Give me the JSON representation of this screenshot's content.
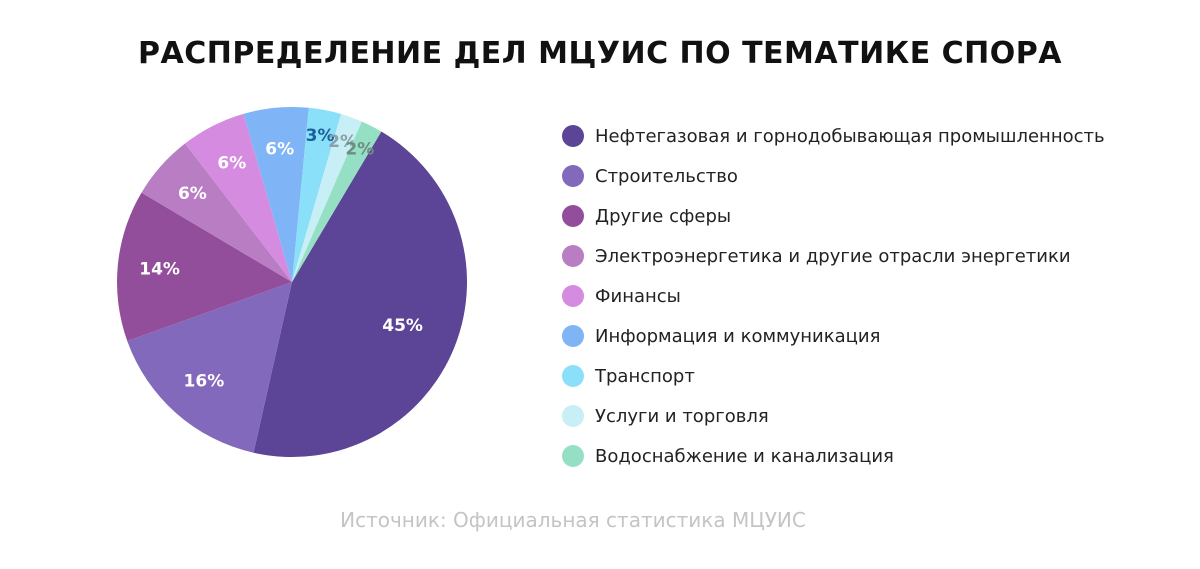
{
  "chart_data": {
    "type": "pie",
    "title": "РАСПРЕДЕЛЕНИЕ ДЕЛ МЦУИС ПО ТЕМАТИКЕ СПОРА",
    "source": "Источник: Официальная статистика МЦУИС",
    "legend_position": "right",
    "slices": [
      {
        "label": "Нефтегазовая и горнодобывающая промышленность",
        "value": 45,
        "value_label": "45%",
        "color": "#5c4496",
        "label_color": "#ffffff"
      },
      {
        "label": "Строительство",
        "value": 16,
        "value_label": "16%",
        "color": "#8369bb",
        "label_color": "#ffffff"
      },
      {
        "label": "Другие сферы",
        "value": 14,
        "value_label": "14%",
        "color": "#934e9b",
        "label_color": "#ffffff"
      },
      {
        "label": "Электроэнергетика и другие отрасли энергетики",
        "value": 6,
        "value_label": "6%",
        "color": "#b97dc4",
        "label_color": "#ffffff"
      },
      {
        "label": "Финансы",
        "value": 6,
        "value_label": "6%",
        "color": "#d58bdf",
        "label_color": "#ffffff"
      },
      {
        "label": "Информация и коммуникация",
        "value": 6,
        "value_label": "6%",
        "color": "#7fb4f7",
        "label_color": "#ffffff"
      },
      {
        "label": "Транспорт",
        "value": 3,
        "value_label": "3%",
        "color": "#8adff9",
        "label_color": "#1a5f9e"
      },
      {
        "label": "Услуги и торговля",
        "value": 2,
        "value_label": "2%",
        "color": "#c8eff5",
        "label_color": "#8aa0aa"
      },
      {
        "label": "Водоснабжение и канализация",
        "value": 2,
        "value_label": "2%",
        "color": "#95e0c5",
        "label_color": "#6e8c82"
      }
    ]
  }
}
